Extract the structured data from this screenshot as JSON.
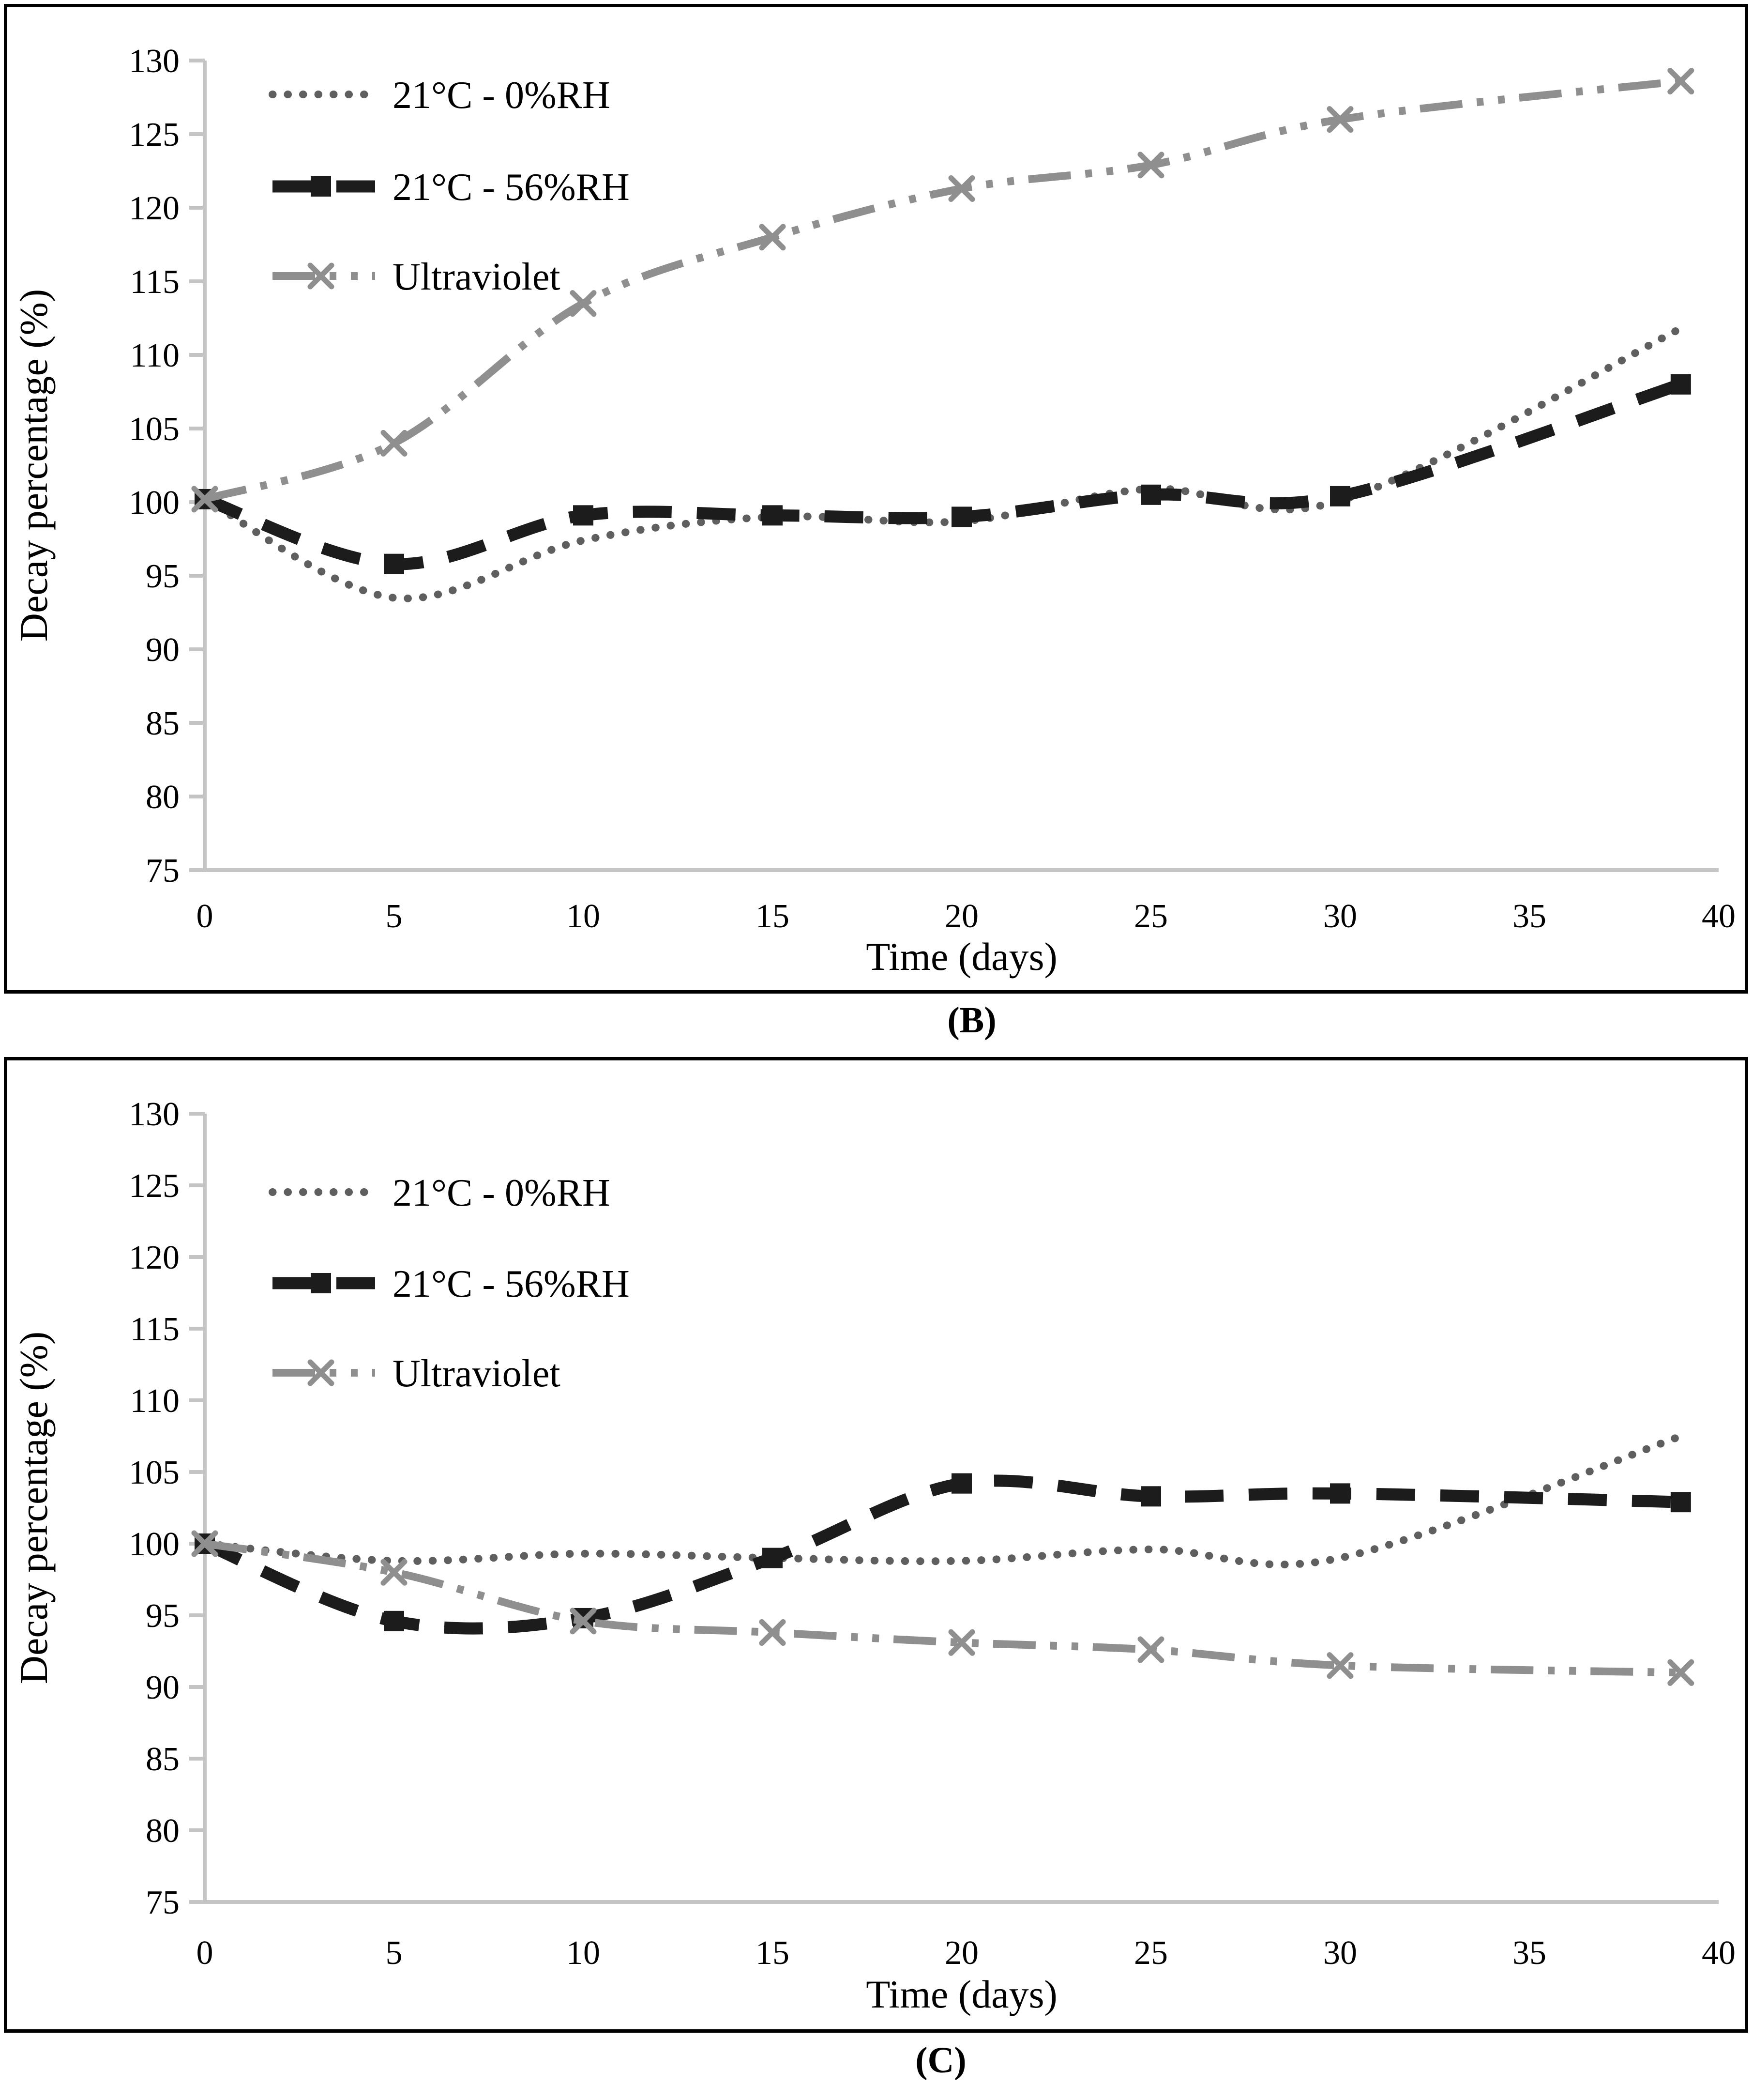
{
  "page": {
    "background": "#ffffff"
  },
  "panels": [
    {
      "id": "B",
      "caption": "(B)",
      "x_axis": {
        "label": "Time (days)",
        "min": 0,
        "max": 40,
        "step": 5
      },
      "y_axis": {
        "label": "Decay percentage (%)",
        "min": 75,
        "max": 130,
        "step": 5
      },
      "legend": [
        {
          "label": "21°C - 0%RH",
          "series": "rh0"
        },
        {
          "label": "21°C - 56%RH",
          "series": "rh56"
        },
        {
          "label": "Ultraviolet",
          "series": "uv"
        }
      ]
    },
    {
      "id": "C",
      "caption": "(C)",
      "x_axis": {
        "label": "Time (days)",
        "min": 0,
        "max": 40,
        "step": 5
      },
      "y_axis": {
        "label": "Decay percentage (%)",
        "min": 75,
        "max": 130,
        "step": 5
      },
      "legend": [
        {
          "label": "21°C - 0%RH",
          "series": "rh0"
        },
        {
          "label": "21°C - 56%RH",
          "series": "rh56"
        },
        {
          "label": "Ultraviolet",
          "series": "uv"
        }
      ]
    }
  ],
  "series_styles": {
    "rh0": {
      "color": "#5f5f5f",
      "dash": "dotted",
      "marker": "none"
    },
    "rh56": {
      "color": "#1c1c1c",
      "dash": "dashed",
      "marker": "square"
    },
    "uv": {
      "color": "#8f8f8f",
      "dash": "dash-dot-dot",
      "marker": "x"
    }
  },
  "axis_style": {
    "line_color": "#c4c4c4",
    "text_color": "#000000"
  },
  "chart_data": [
    {
      "id": "B",
      "type": "line",
      "title": "(B)",
      "xlabel": "Time (days)",
      "ylabel": "Decay percentage (%)",
      "xlim": [
        0,
        40
      ],
      "ylim": [
        75,
        130
      ],
      "grid": false,
      "legend_position": "upper-left-inside",
      "x": [
        0,
        5,
        10,
        15,
        20,
        25,
        30,
        39
      ],
      "series": [
        {
          "key": "rh0",
          "name": "21°C - 0%RH",
          "values": [
            100.2,
            93.5,
            97.4,
            99.0,
            98.7,
            100.9,
            100.1,
            111.8
          ]
        },
        {
          "key": "rh56",
          "name": "21°C - 56%RH",
          "values": [
            100.2,
            95.8,
            99.1,
            99.1,
            99.0,
            100.5,
            100.4,
            108.0
          ]
        },
        {
          "key": "uv",
          "name": "Ultraviolet",
          "values": [
            100.2,
            104.0,
            113.5,
            118.0,
            121.3,
            122.9,
            126.0,
            128.6
          ]
        }
      ]
    },
    {
      "id": "C",
      "type": "line",
      "title": "(C)",
      "xlabel": "Time (days)",
      "ylabel": "Decay percentage (%)",
      "xlim": [
        0,
        40
      ],
      "ylim": [
        75,
        130
      ],
      "grid": false,
      "legend_position": "upper-left-inside",
      "x": [
        0,
        5,
        10,
        15,
        20,
        25,
        30,
        39
      ],
      "series": [
        {
          "key": "rh0",
          "name": "21°C - 0%RH",
          "values": [
            100.0,
            98.8,
            99.3,
            99.0,
            98.8,
            99.6,
            99.0,
            107.5
          ]
        },
        {
          "key": "rh56",
          "name": "21°C - 56%RH",
          "values": [
            100.0,
            94.6,
            94.8,
            99.0,
            104.2,
            103.3,
            103.5,
            102.9
          ]
        },
        {
          "key": "uv",
          "name": "Ultraviolet",
          "values": [
            100.0,
            98.0,
            94.6,
            93.8,
            93.1,
            92.6,
            91.5,
            91.0
          ]
        }
      ]
    }
  ]
}
